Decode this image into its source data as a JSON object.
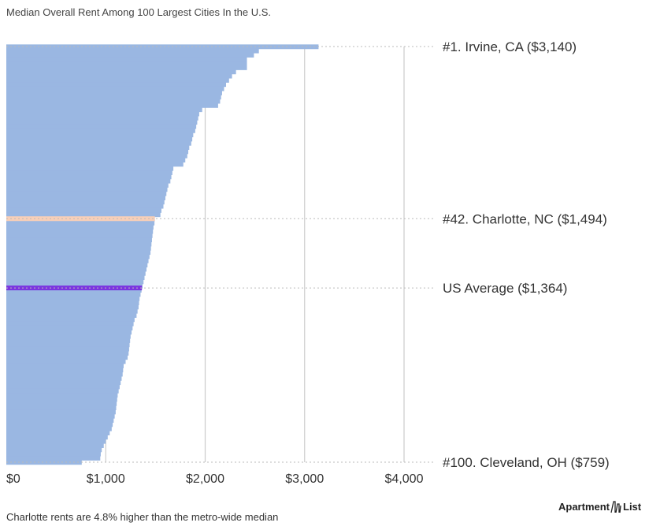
{
  "chart_data": {
    "type": "bar",
    "orientation": "horizontal",
    "title": "Median Overall Rent Among 100 Largest Cities In the U.S.",
    "xlim": [
      0,
      4000
    ],
    "x_ticks": [
      0,
      1000,
      2000,
      3000,
      4000
    ],
    "x_tick_labels": [
      "$0",
      "$1,000",
      "$2,000",
      "$3,000",
      "$4,000"
    ],
    "grid": "vertical",
    "values": [
      3140,
      2540,
      2490,
      2420,
      2420,
      2420,
      2310,
      2270,
      2240,
      2210,
      2190,
      2170,
      2160,
      2150,
      2130,
      1970,
      1940,
      1930,
      1920,
      1910,
      1900,
      1880,
      1870,
      1860,
      1840,
      1830,
      1820,
      1800,
      1780,
      1680,
      1670,
      1660,
      1650,
      1630,
      1620,
      1610,
      1600,
      1590,
      1580,
      1560,
      1550,
      1494,
      1490,
      1480,
      1475,
      1470,
      1465,
      1460,
      1455,
      1450,
      1440,
      1430,
      1420,
      1410,
      1400,
      1390,
      1380,
      1370,
      1360,
      1350,
      1340,
      1335,
      1330,
      1320,
      1310,
      1290,
      1280,
      1270,
      1260,
      1250,
      1245,
      1240,
      1235,
      1230,
      1220,
      1200,
      1180,
      1175,
      1170,
      1160,
      1150,
      1140,
      1130,
      1120,
      1115,
      1110,
      1105,
      1100,
      1090,
      1080,
      1070,
      1060,
      1040,
      1020,
      1000,
      980,
      960,
      950,
      945,
      759
    ],
    "bar_color": "#9ab7e2",
    "highlights": [
      {
        "label": "#1. Irvine, CA ($3,140)",
        "rank": 1,
        "value": 3140,
        "color": "#9ab7e2"
      },
      {
        "label": "#42. Charlotte, NC ($1,494)",
        "rank": 42,
        "value": 1494,
        "color": "#f8cfb8"
      },
      {
        "label": "US Average ($1,364)",
        "value": 1364,
        "color": "#7b35e0"
      },
      {
        "label": "#100. Cleveland, OH ($759)",
        "rank": 100,
        "value": 759,
        "color": "#9ab7e2"
      }
    ]
  },
  "footnote": "Charlotte rents are 4.8% higher than the metro-wide median",
  "brand": {
    "name_left": "Apartment",
    "name_right": "List"
  }
}
